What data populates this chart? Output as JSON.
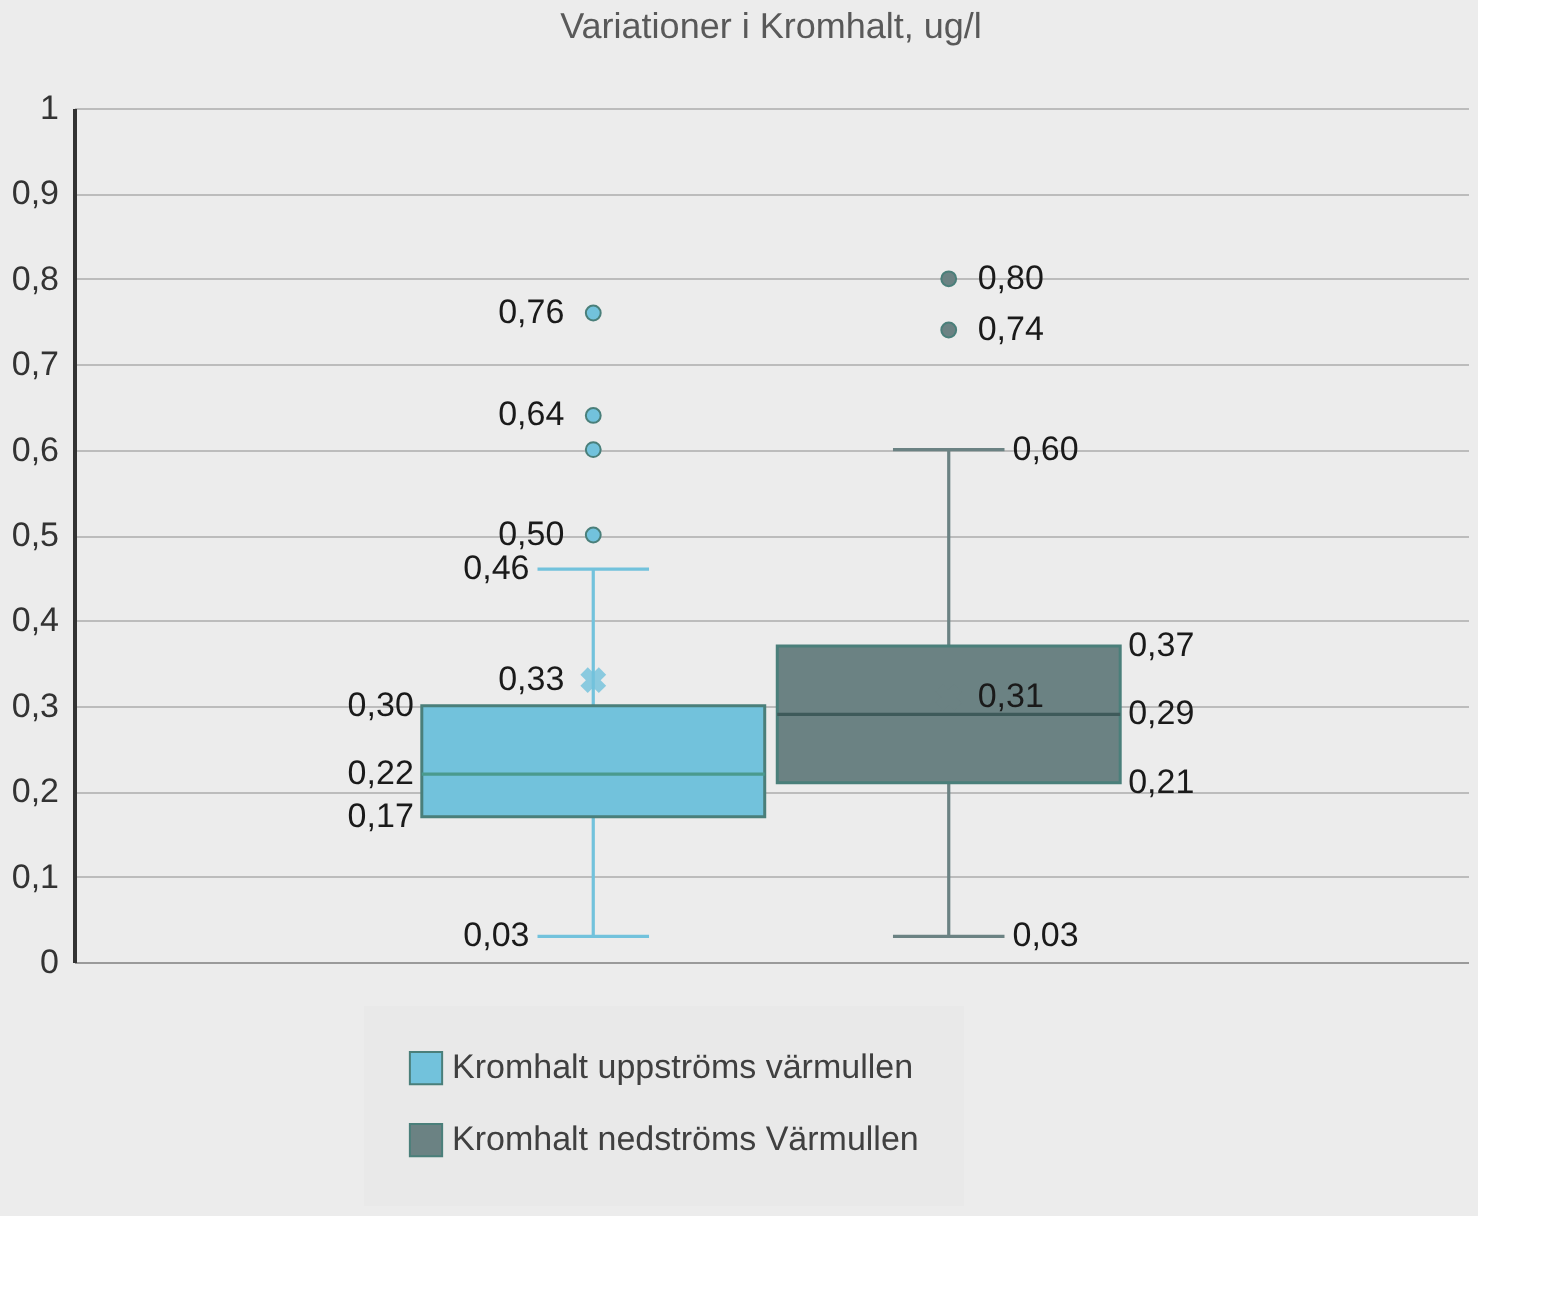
{
  "chart_data": {
    "type": "box",
    "title": "Variationer i Kromhalt, ug/l",
    "categories": [
      null
    ],
    "ylim": [
      0,
      1
    ],
    "yticks": [
      0,
      {
        "value": 0.1,
        "label": "0,1"
      },
      {
        "value": 0.2,
        "label": "0,2"
      },
      {
        "value": 0.3,
        "label": "0,3"
      },
      {
        "value": 0.4,
        "label": "0,4"
      },
      {
        "value": 0.5,
        "label": "0,5"
      },
      {
        "value": 0.6,
        "label": "0,6"
      },
      {
        "value": 0.7,
        "label": "0,7"
      },
      {
        "value": 0.8,
        "label": "0,8"
      },
      {
        "value": 0.9,
        "label": "0,9"
      },
      1
    ],
    "grid": "y",
    "legend": "bottom",
    "annotations": [
      "0,03",
      "0,17",
      "0,22",
      "0,30",
      "0,46",
      "0,33",
      "0,50",
      "0,64",
      "0,76",
      "0,03",
      "0,21",
      "0,29",
      "0,37",
      "0,60",
      "0,31",
      "0,74",
      "0,80"
    ],
    "series": [
      {
        "name": "Kromhalt uppströms värmullen",
        "color": "#72c2dc",
        "boxes": [
          {
            "low": 0.03,
            "q1": 0.17,
            "median": 0.22,
            "q3": 0.3,
            "high": 0.46,
            "mean": 0.33,
            "outliers": [
              0.5,
              0.6,
              0.64,
              0.76
            ]
          }
        ]
      },
      {
        "name": "Kromhalt nedströms Värmullen",
        "color": "#6b8283",
        "boxes": [
          {
            "low": 0.03,
            "q1": 0.21,
            "median": 0.29,
            "q3": 0.37,
            "high": 0.6,
            "mean": 0.31,
            "outliers": [
              0.74,
              0.8
            ]
          }
        ]
      }
    ]
  }
}
